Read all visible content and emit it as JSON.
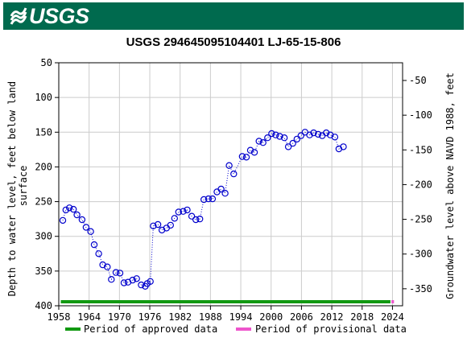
{
  "header": {
    "agency_logo_text": "USGS",
    "banner_color": "#006a4e"
  },
  "chart_data": {
    "type": "scatter",
    "title": "USGS 294645095104401 LJ-65-15-806",
    "xlabel": "",
    "ylabel_left": "Depth to water level, feet below land surface",
    "ylabel_right": "Groundwater level above NAVD 1988, feet",
    "xlim": [
      1958,
      2026
    ],
    "ylim_left": [
      400,
      50
    ],
    "ylim_right": [
      -374.5,
      -24.5
    ],
    "x_ticks": [
      "1958",
      "1964",
      "1970",
      "1976",
      "1982",
      "1988",
      "1994",
      "2000",
      "2006",
      "2012",
      "2018",
      "2024"
    ],
    "y_ticks_left": [
      "50",
      "100",
      "150",
      "200",
      "250",
      "300",
      "350",
      "400"
    ],
    "y_ticks_right": [
      "-50",
      "-100",
      "-150",
      "-200",
      "-250",
      "-300",
      "-350"
    ],
    "grid": true,
    "series": [
      {
        "name": "Depth to water level",
        "color": "#0000cc",
        "marker": "open-circle",
        "line": "dotted",
        "points": [
          [
            1958.8,
            277
          ],
          [
            1959.4,
            262
          ],
          [
            1960.1,
            259
          ],
          [
            1960.9,
            261
          ],
          [
            1961.6,
            269
          ],
          [
            1962.6,
            276
          ],
          [
            1963.4,
            287
          ],
          [
            1964.3,
            293
          ],
          [
            1965.0,
            312
          ],
          [
            1965.9,
            325
          ],
          [
            1966.7,
            341
          ],
          [
            1967.6,
            344
          ],
          [
            1968.4,
            362
          ],
          [
            1969.3,
            352
          ],
          [
            1970.1,
            353
          ],
          [
            1970.9,
            367
          ],
          [
            1971.7,
            366
          ],
          [
            1972.6,
            363
          ],
          [
            1973.4,
            361
          ],
          [
            1974.3,
            370
          ],
          [
            1975.1,
            372
          ],
          [
            1975.5,
            368
          ],
          [
            1976.1,
            365
          ],
          [
            1976.7,
            285
          ],
          [
            1977.6,
            283
          ],
          [
            1978.4,
            291
          ],
          [
            1979.3,
            288
          ],
          [
            1980.1,
            284
          ],
          [
            1980.9,
            274
          ],
          [
            1981.7,
            265
          ],
          [
            1982.6,
            264
          ],
          [
            1983.4,
            262
          ],
          [
            1984.3,
            271
          ],
          [
            1985.1,
            276
          ],
          [
            1985.9,
            275
          ],
          [
            1986.7,
            247
          ],
          [
            1987.6,
            246
          ],
          [
            1988.4,
            246
          ],
          [
            1989.3,
            236
          ],
          [
            1990.1,
            232
          ],
          [
            1990.9,
            238
          ],
          [
            1991.7,
            198
          ],
          [
            1992.6,
            210
          ],
          [
            1994.3,
            185
          ],
          [
            1995.1,
            186
          ],
          [
            1995.9,
            176
          ],
          [
            1996.7,
            179
          ],
          [
            1997.6,
            163
          ],
          [
            1998.4,
            165
          ],
          [
            1999.3,
            158
          ],
          [
            2000.1,
            152
          ],
          [
            2000.9,
            154
          ],
          [
            2001.7,
            156
          ],
          [
            2002.6,
            158
          ],
          [
            2003.4,
            171
          ],
          [
            2004.3,
            166
          ],
          [
            2005.1,
            160
          ],
          [
            2005.9,
            155
          ],
          [
            2006.7,
            150
          ],
          [
            2007.6,
            154
          ],
          [
            2008.4,
            151
          ],
          [
            2009.3,
            153
          ],
          [
            2010.1,
            155
          ],
          [
            2010.9,
            151
          ],
          [
            2011.7,
            154
          ],
          [
            2012.6,
            157
          ],
          [
            2013.4,
            174
          ],
          [
            2014.3,
            171
          ]
        ]
      }
    ],
    "approval_bar": {
      "approved_range": [
        1958.4,
        2023.6
      ],
      "provisional_range": [
        2023.8,
        2024.3
      ],
      "approved_color": "#119911",
      "provisional_color": "#ee55cc"
    },
    "legend": {
      "placement": "bottom",
      "approved_label": "Period of approved data",
      "provisional_label": "Period of provisional data"
    }
  }
}
